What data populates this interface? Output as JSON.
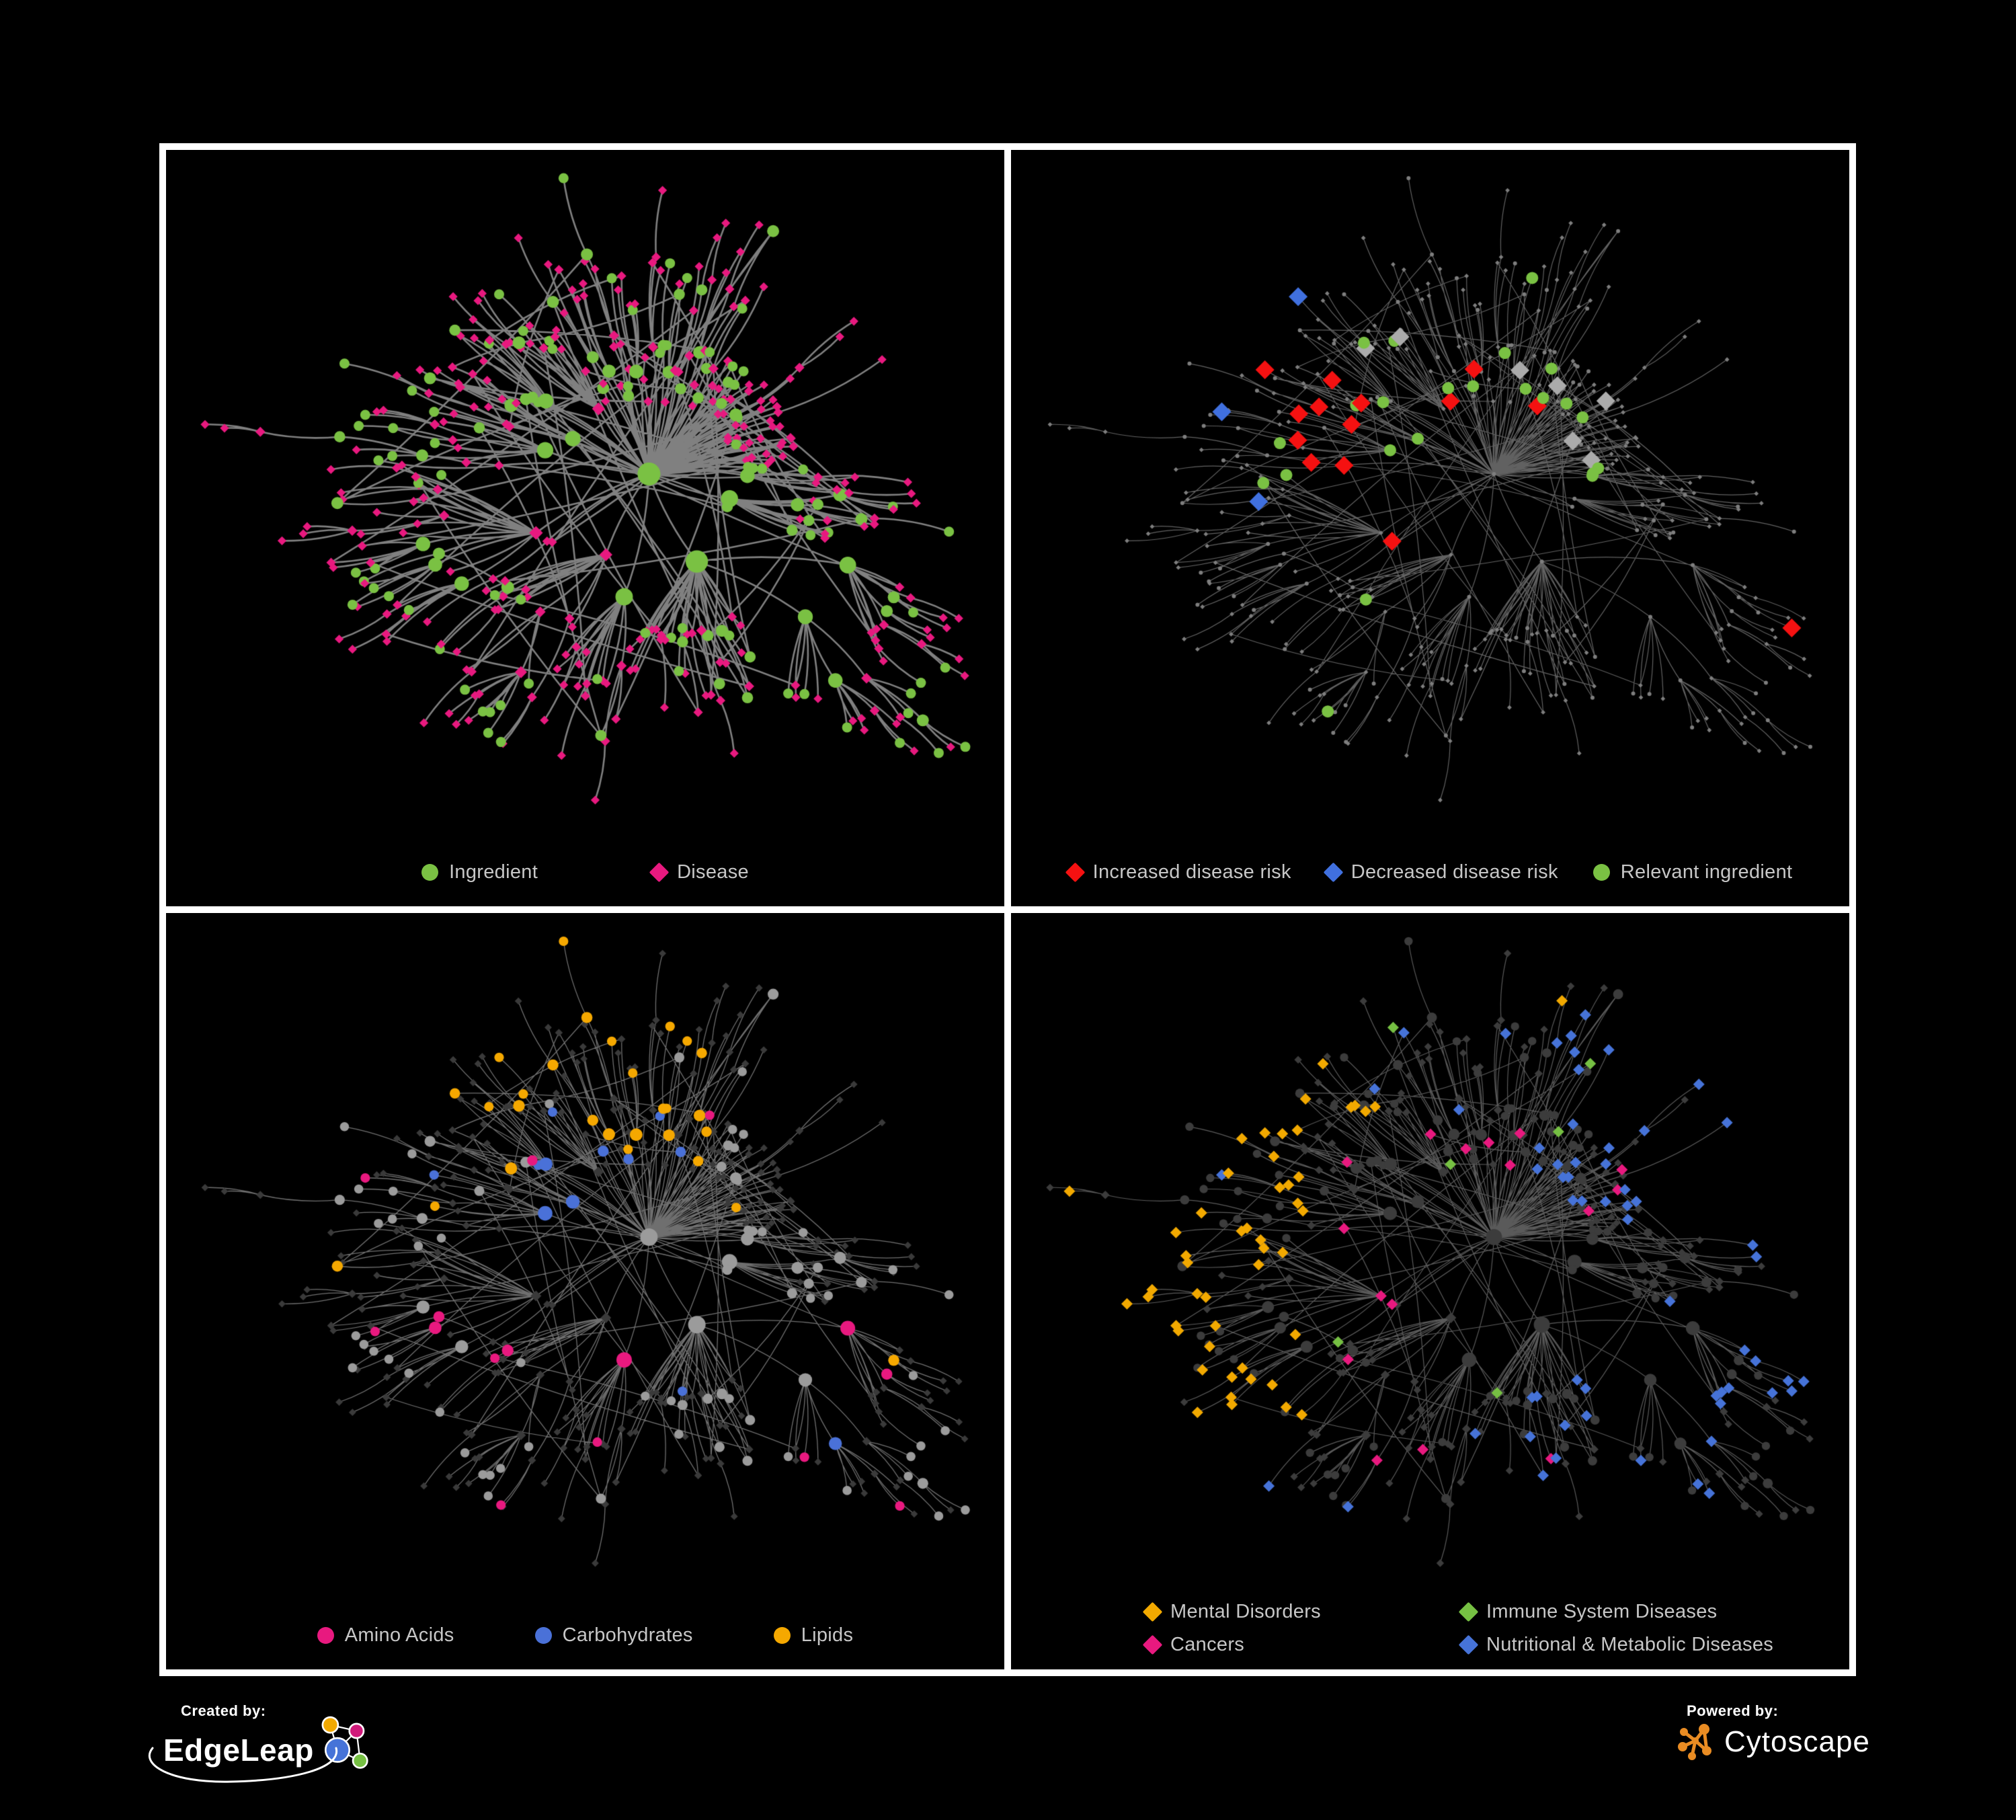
{
  "background": "#000000",
  "legend_text_color": "#C7C7C7",
  "panels": [
    {
      "id": "ingredient-disease",
      "legend": [
        {
          "shape": "circle",
          "color": "#7AC143",
          "label": "Ingredient"
        },
        {
          "shape": "diamond",
          "color": "#E8197F",
          "label": "Disease"
        }
      ],
      "style": {
        "edge": "rgba(150,150,150,0.85)",
        "edge_width": 2.6,
        "circle_color": "#7AC143",
        "diamond_color": "#E8197F"
      }
    },
    {
      "id": "disease-risk",
      "legend": [
        {
          "shape": "diamond",
          "color": "#F51111",
          "label": "Increased disease risk"
        },
        {
          "shape": "diamond",
          "color": "#4070DF",
          "label": "Decreased disease risk"
        },
        {
          "shape": "circle",
          "color": "#7AC143",
          "label": "Relevant ingredient"
        }
      ],
      "style": {
        "edge": "rgba(130,130,130,0.75)",
        "edge_width": 1.2,
        "base": "#7E7E7E",
        "red": "#F51111",
        "blue": "#4070DF",
        "gray": "#ABABAB",
        "green": "#7AC143"
      }
    },
    {
      "id": "nutrient-classes",
      "legend": [
        {
          "shape": "circle",
          "color": "#E8197F",
          "label": "Amino Acids"
        },
        {
          "shape": "circle",
          "color": "#4A71D8",
          "label": "Carbohydrates"
        },
        {
          "shape": "circle",
          "color": "#F5A800",
          "label": "Lipids"
        }
      ],
      "style": {
        "edge": "rgba(170,170,170,0.65)",
        "edge_width": 1.3,
        "circle": "#9B9B9B",
        "diamond": "#3A3A3A",
        "pink": "#E8197F",
        "blue": "#4A71D8",
        "orange": "#F5A800"
      }
    },
    {
      "id": "disease-categories",
      "legend": [
        {
          "shape": "diamond",
          "color": "#F2A900",
          "label": "Mental Disorders"
        },
        {
          "shape": "diamond",
          "color": "#76C043",
          "label": "Immune System Diseases"
        },
        {
          "shape": "diamond",
          "color": "#E8197F",
          "label": "Cancers"
        },
        {
          "shape": "diamond",
          "color": "#4673D8",
          "label": "Nutritional & Metabolic Diseases"
        }
      ],
      "style": {
        "edge": "rgba(150,150,150,0.6)",
        "edge_width": 1.2,
        "dark": "#3C3C3C",
        "orange": "#F2A900",
        "green": "#76C043",
        "pink": "#E8197F",
        "blue": "#4673D8"
      }
    }
  ],
  "network": {
    "seed": 1337,
    "node_count": 430,
    "extra_edge_count": 52,
    "hub_bias": 2,
    "layout": {
      "radial_step": 170,
      "step_decay": 0.8,
      "x_stretch": 1.12
    }
  },
  "footer": {
    "created_by_label": "Created by:",
    "created_brand": "EdgeLeap",
    "powered_by_label": "Powered by:",
    "powered_brand": "Cytoscape",
    "edgeleap_node_colors": [
      "#F2A900",
      "#D0197A",
      "#4673D8",
      "#76C043"
    ],
    "cytoscape_orange": "#E98C23"
  }
}
